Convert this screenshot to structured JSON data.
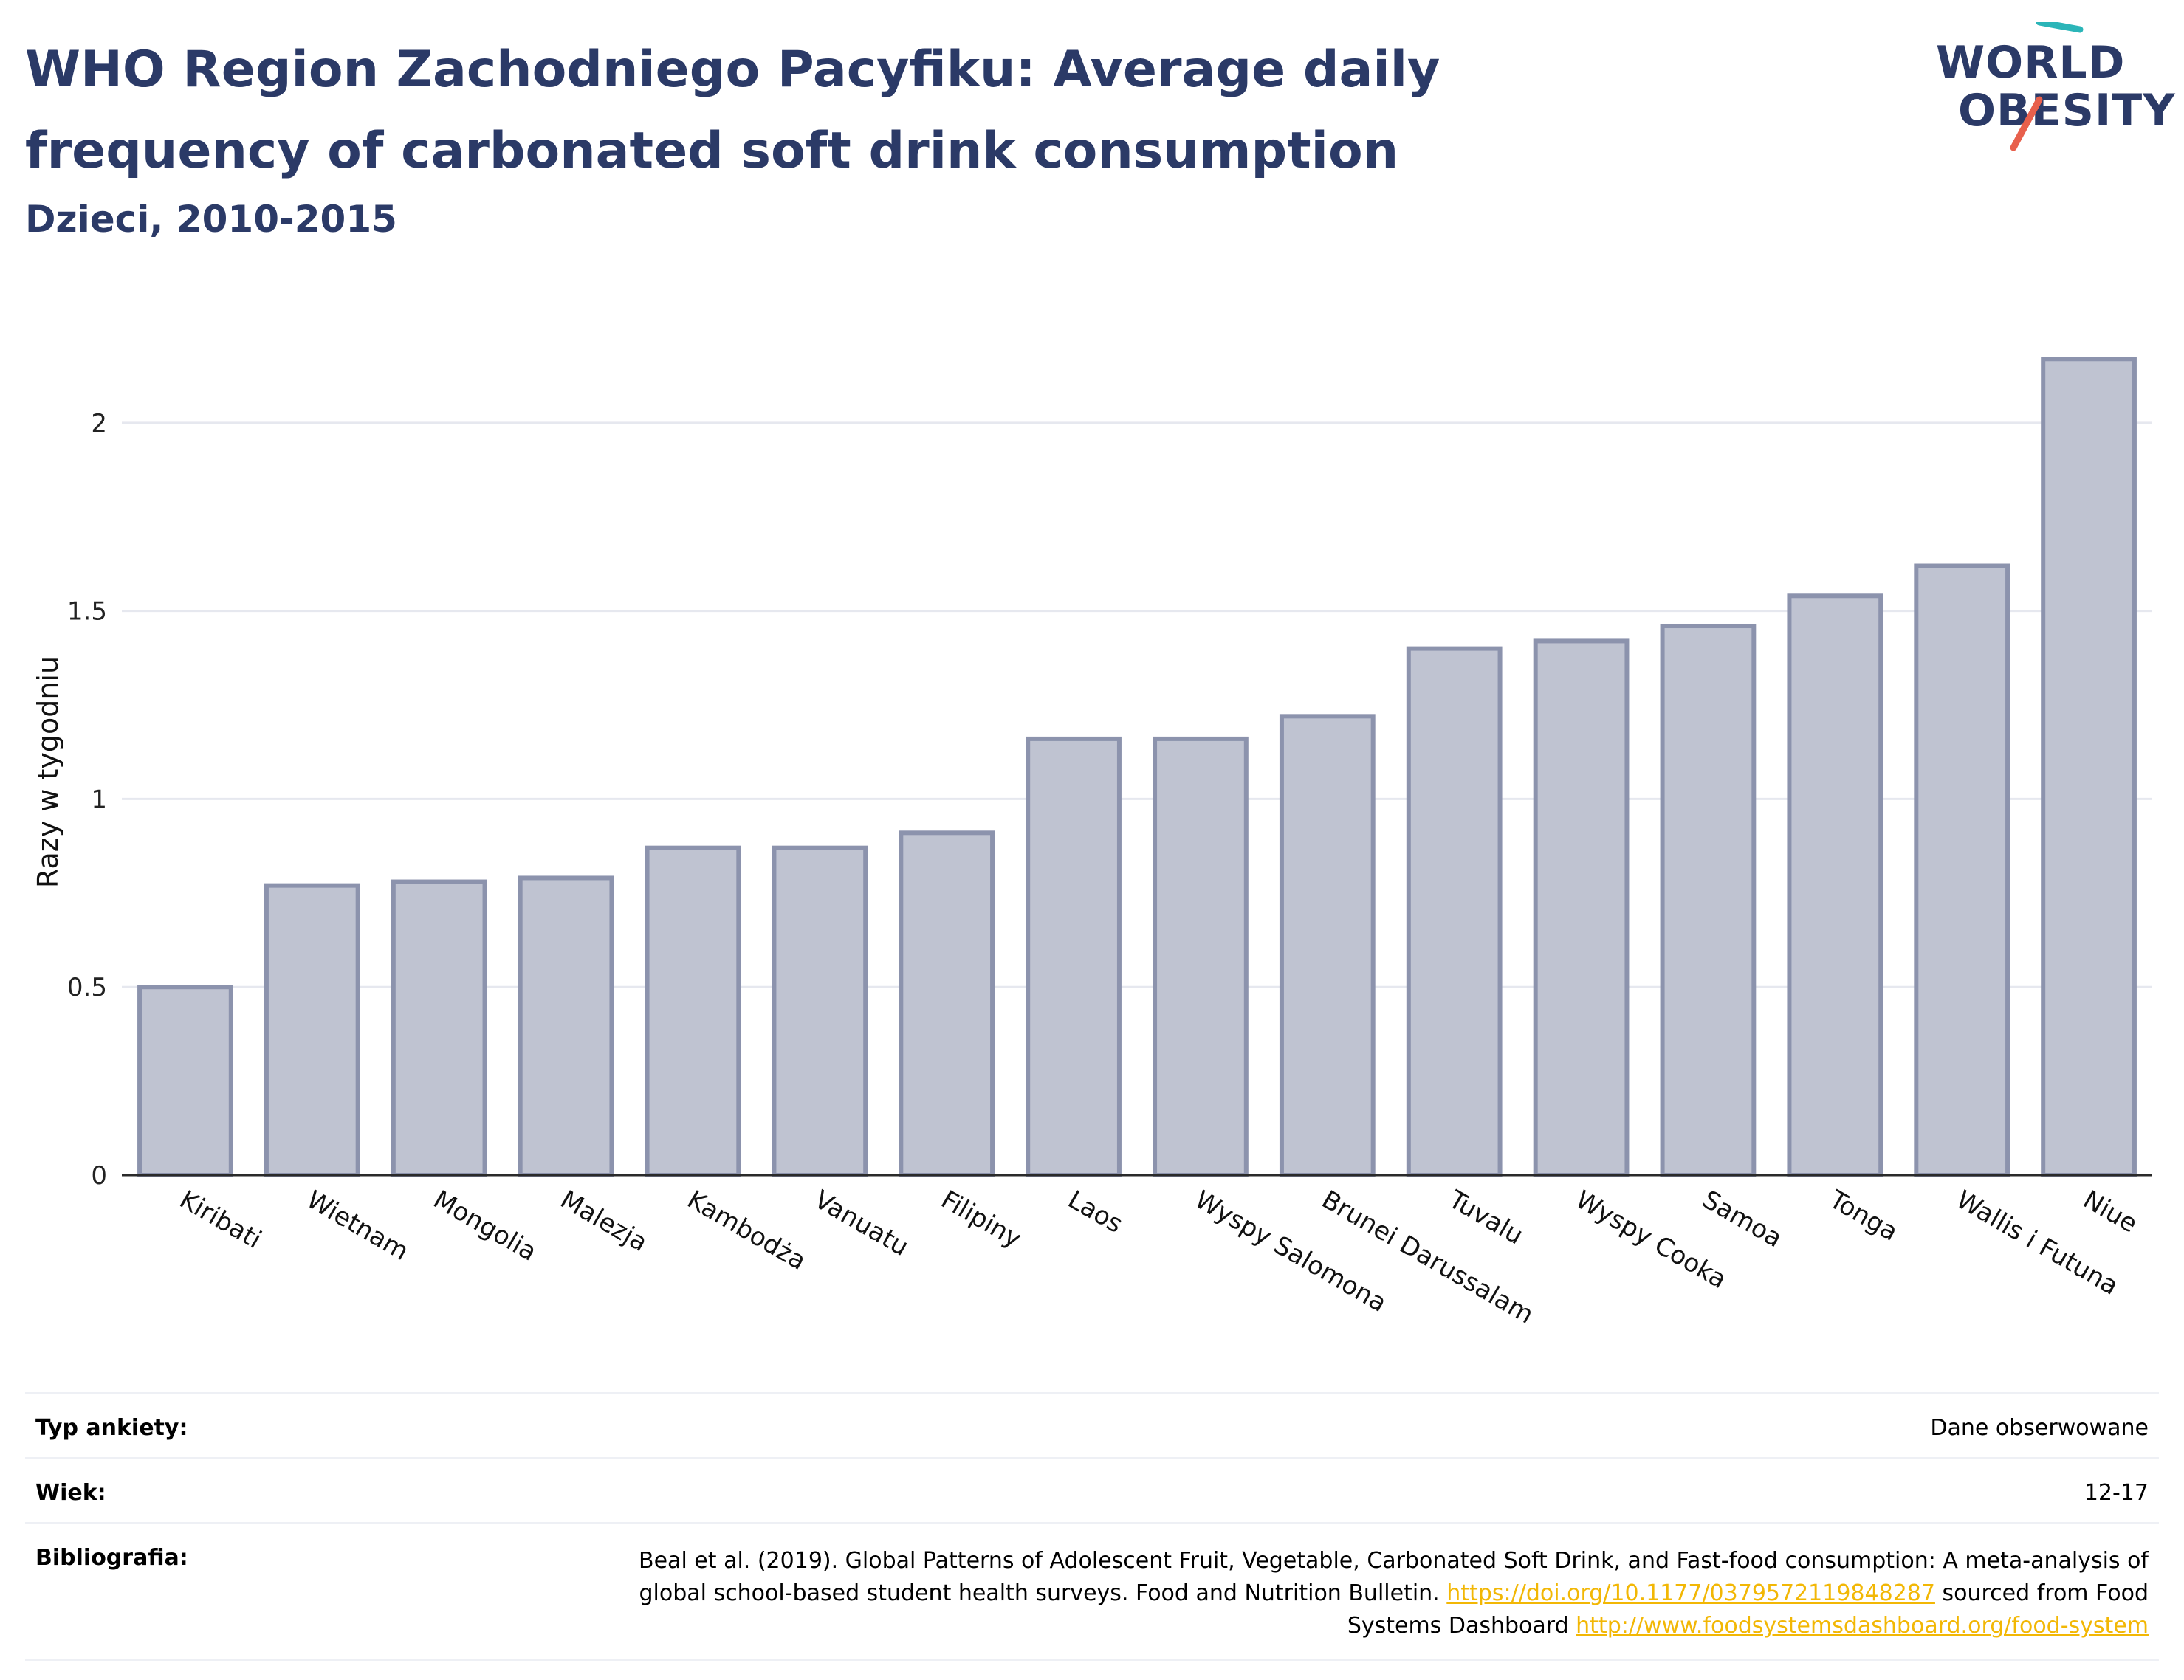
{
  "header": {
    "title": "WHO Region Zachodniego Pacyfiku: Average daily frequency of carbonated soft drink consumption",
    "subtitle": "Dzieci, 2010-2015"
  },
  "logo": {
    "line1": "WORLD",
    "line2": "OBESITY",
    "colors": {
      "text": "#2b3a67",
      "teal": "#2bb5b8",
      "coral": "#e8604c"
    }
  },
  "chart_data": {
    "type": "bar",
    "title": "",
    "xlabel": "",
    "ylabel": "Razy w tygodniu",
    "categories": [
      "Kiribati",
      "Wietnam",
      "Mongolia",
      "Malezja",
      "Kambodża",
      "Vanuatu",
      "Filipiny",
      "Laos",
      "Wyspy Salomona",
      "Brunei Darussalam",
      "Tuvalu",
      "Wyspy Cooka",
      "Samoa",
      "Tonga",
      "Wallis i Futuna",
      "Niue"
    ],
    "values": [
      0.5,
      0.77,
      0.78,
      0.79,
      0.87,
      0.87,
      0.91,
      1.16,
      1.16,
      1.22,
      1.4,
      1.42,
      1.46,
      1.54,
      1.62,
      2.17
    ],
    "yticks": [
      "0",
      "0.5",
      "1",
      "1.5",
      "2"
    ],
    "ylim": [
      0,
      2.3
    ],
    "grid": true,
    "colors": {
      "bar_fill": "#bfc3d1",
      "bar_stroke": "#8c93ad",
      "grid": "#e6e8ef",
      "axis": "#2a2a2a"
    }
  },
  "info": {
    "survey_label": "Typ ankiety:",
    "survey_value": "Dane obserwowane",
    "age_label": "Wiek:",
    "age_value": "12-17",
    "bib_label": "Bibliografia:",
    "bib_text_1": "Beal et al. (2019). Global Patterns of Adolescent Fruit, Vegetable, Carbonated Soft Drink, and Fast-food consumption: A meta-analysis of global school-based student health surveys. Food and Nutrition Bulletin.",
    "bib_link_1": "https://doi.org/10.1177/0379572119848287",
    "bib_text_2": "sourced from Food Systems Dashboard",
    "bib_link_2": "http://www.foodsystemsdashboard.org/food-system",
    "link_color": "#f2b705"
  }
}
